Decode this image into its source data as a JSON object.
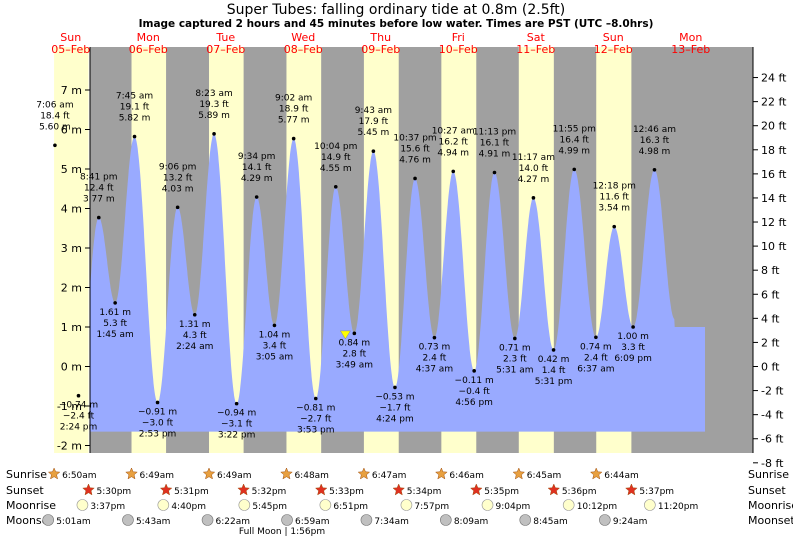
{
  "title": "Super Tubes: falling  ordinary tide at 0.8m (2.5ft)",
  "subtitle": "Image captured 2 hours and 45 minutes before low water. Times are PST (UTC –8.0hrs)",
  "colors": {
    "night": "#a0a0a0",
    "day": "#ffffcc",
    "water": "#99aaff",
    "day_label": "#ff0000",
    "sun_icon": "#e8a040",
    "sunset_icon": "#e03020",
    "moonrise_icon": "#ffffcc",
    "moonset_icon": "#c0c0c0",
    "current_marker": "#ffff00"
  },
  "chart_data": {
    "type": "area",
    "y_left": {
      "unit": "m",
      "min": -2,
      "max": 7,
      "ticks": [
        "-2 m",
        "-1 m",
        "0 m",
        "1 m",
        "2 m",
        "3 m",
        "4 m",
        "5 m",
        "6 m",
        "7 m"
      ]
    },
    "y_right": {
      "unit": "ft",
      "ticks": [
        "-8 ft",
        "-6 ft",
        "-4 ft",
        "-2 ft",
        "0 ft",
        "2 ft",
        "4 ft",
        "6 ft",
        "8 ft",
        "10 ft",
        "12 ft",
        "14 ft",
        "16 ft",
        "18 ft",
        "20 ft",
        "22 ft",
        "24 ft"
      ]
    },
    "days": [
      {
        "dow": "Sun",
        "date": "05–Feb"
      },
      {
        "dow": "Mon",
        "date": "06–Feb"
      },
      {
        "dow": "Tue",
        "date": "07–Feb"
      },
      {
        "dow": "Wed",
        "date": "08–Feb"
      },
      {
        "dow": "Thu",
        "date": "09–Feb"
      },
      {
        "dow": "Fri",
        "date": "10–Feb"
      },
      {
        "dow": "Sat",
        "date": "11–Feb"
      },
      {
        "dow": "Sun",
        "date": "12–Feb"
      },
      {
        "dow": "Mon",
        "date": "13–Feb"
      }
    ],
    "daylight": [
      {
        "sunrise": "6:50am",
        "sunset": "5:30pm"
      },
      {
        "sunrise": "6:49am",
        "sunset": "5:31pm"
      },
      {
        "sunrise": "6:49am",
        "sunset": "5:32pm"
      },
      {
        "sunrise": "6:48am",
        "sunset": "5:33pm"
      },
      {
        "sunrise": "6:47am",
        "sunset": "5:34pm"
      },
      {
        "sunrise": "6:46am",
        "sunset": "5:35pm"
      },
      {
        "sunrise": "6:45am",
        "sunset": "5:36pm"
      },
      {
        "sunrise": "6:44am",
        "sunset": "5:37pm"
      }
    ],
    "tides": [
      {
        "type": "high",
        "time": "7:06 am",
        "m": 5.6,
        "m_label": "5.60 m",
        "ft_label": "18.4 ft",
        "day": 0,
        "hour": 7.1
      },
      {
        "type": "low",
        "time": "2:24 pm",
        "m": -0.74,
        "m_label": "−0.74 m",
        "ft_label": "−2.4 ft",
        "day": 0,
        "hour": 14.4
      },
      {
        "type": "high",
        "time": "8:41 pm",
        "m": 3.77,
        "m_label": "3.77 m",
        "ft_label": "12.4 ft",
        "day": 0,
        "hour": 20.68
      },
      {
        "type": "low",
        "time": "1:45 am",
        "m": 1.61,
        "m_label": "1.61 m",
        "ft_label": "5.3 ft",
        "day": 1,
        "hour": 1.75
      },
      {
        "type": "high",
        "time": "7:45 am",
        "m": 5.82,
        "m_label": "5.82 m",
        "ft_label": "19.1 ft",
        "day": 1,
        "hour": 7.75
      },
      {
        "type": "low",
        "time": "2:53 pm",
        "m": -0.91,
        "m_label": "−0.91 m",
        "ft_label": "−3.0 ft",
        "day": 1,
        "hour": 14.88
      },
      {
        "type": "high",
        "time": "9:06 pm",
        "m": 4.03,
        "m_label": "4.03 m",
        "ft_label": "13.2 ft",
        "day": 1,
        "hour": 21.1
      },
      {
        "type": "low",
        "time": "2:24 am",
        "m": 1.31,
        "m_label": "1.31 m",
        "ft_label": "4.3 ft",
        "day": 2,
        "hour": 2.4
      },
      {
        "type": "high",
        "time": "8:23 am",
        "m": 5.89,
        "m_label": "5.89 m",
        "ft_label": "19.3 ft",
        "day": 2,
        "hour": 8.38
      },
      {
        "type": "low",
        "time": "3:22 pm",
        "m": -0.94,
        "m_label": "−0.94 m",
        "ft_label": "−3.1 ft",
        "day": 2,
        "hour": 15.37
      },
      {
        "type": "high",
        "time": "9:34 pm",
        "m": 4.29,
        "m_label": "4.29 m",
        "ft_label": "14.1 ft",
        "day": 2,
        "hour": 21.57
      },
      {
        "type": "low",
        "time": "3:05 am",
        "m": 1.04,
        "m_label": "1.04 m",
        "ft_label": "3.4 ft",
        "day": 3,
        "hour": 3.08
      },
      {
        "type": "high",
        "time": "9:02 am",
        "m": 5.77,
        "m_label": "5.77 m",
        "ft_label": "18.9 ft",
        "day": 3,
        "hour": 9.03
      },
      {
        "type": "low",
        "time": "3:53 pm",
        "m": -0.81,
        "m_label": "−0.81 m",
        "ft_label": "−2.7 ft",
        "day": 3,
        "hour": 15.88
      },
      {
        "type": "high",
        "time": "10:04 pm",
        "m": 4.55,
        "m_label": "4.55 m",
        "ft_label": "14.9 ft",
        "day": 3,
        "hour": 22.07
      },
      {
        "type": "low",
        "time": "3:49 am",
        "m": 0.84,
        "m_label": "0.84 m",
        "ft_label": "2.8 ft",
        "day": 4,
        "hour": 3.82
      },
      {
        "type": "high",
        "time": "9:43 am",
        "m": 5.45,
        "m_label": "5.45 m",
        "ft_label": "17.9 ft",
        "day": 4,
        "hour": 9.72
      },
      {
        "type": "low",
        "time": "4:24 pm",
        "m": -0.53,
        "m_label": "−0.53 m",
        "ft_label": "−1.7 ft",
        "day": 4,
        "hour": 16.4
      },
      {
        "type": "high",
        "time": "10:37 pm",
        "m": 4.76,
        "m_label": "4.76 m",
        "ft_label": "15.6 ft",
        "day": 4,
        "hour": 22.62
      },
      {
        "type": "low",
        "time": "4:37 am",
        "m": 0.73,
        "m_label": "0.73 m",
        "ft_label": "2.4 ft",
        "day": 5,
        "hour": 4.62
      },
      {
        "type": "high",
        "time": "10:27 am",
        "m": 4.94,
        "m_label": "4.94 m",
        "ft_label": "16.2 ft",
        "day": 5,
        "hour": 10.45
      },
      {
        "type": "low",
        "time": "4:56 pm",
        "m": -0.11,
        "m_label": "−0.11 m",
        "ft_label": "−0.4 ft",
        "day": 5,
        "hour": 16.93
      },
      {
        "type": "high",
        "time": "11:13 pm",
        "m": 4.91,
        "m_label": "4.91 m",
        "ft_label": "16.1 ft",
        "day": 5,
        "hour": 23.22
      },
      {
        "type": "low",
        "time": "5:31 am",
        "m": 0.71,
        "m_label": "0.71 m",
        "ft_label": "2.3 ft",
        "day": 6,
        "hour": 5.52
      },
      {
        "type": "high",
        "time": "11:17 am",
        "m": 4.27,
        "m_label": "4.27 m",
        "ft_label": "14.0 ft",
        "day": 6,
        "hour": 11.28
      },
      {
        "type": "low",
        "time": "5:31 pm",
        "m": 0.42,
        "m_label": "0.42 m",
        "ft_label": "1.4 ft",
        "day": 6,
        "hour": 17.52
      },
      {
        "type": "high",
        "time": "11:55 pm",
        "m": 4.99,
        "m_label": "4.99 m",
        "ft_label": "16.4 ft",
        "day": 6,
        "hour": 23.92
      },
      {
        "type": "low",
        "time": "6:37 am",
        "m": 0.74,
        "m_label": "0.74 m",
        "ft_label": "2.4 ft",
        "day": 7,
        "hour": 6.62
      },
      {
        "type": "high",
        "time": "12:18 pm",
        "m": 3.54,
        "m_label": "3.54 m",
        "ft_label": "11.6 ft",
        "day": 7,
        "hour": 12.3
      },
      {
        "type": "low",
        "time": "6:09 pm",
        "m": 1.0,
        "m_label": "1.00 m",
        "ft_label": "3.3 ft",
        "day": 7,
        "hour": 18.15
      },
      {
        "type": "high",
        "time": "12:46 am",
        "m": 4.98,
        "m_label": "4.98 m",
        "ft_label": "16.3 ft",
        "day": 8,
        "hour": 0.77
      }
    ],
    "current_level": {
      "m": 0.8,
      "day": 4,
      "hour": 1.05
    }
  },
  "rows": {
    "sunrise_label": "Sunrise",
    "sunset_label": "Sunset",
    "moonrise_label": "Moonrise",
    "moonset_label": "Moonset",
    "moonrise": [
      "3:37pm",
      "4:40pm",
      "5:45pm",
      "6:51pm",
      "7:57pm",
      "9:04pm",
      "10:12pm",
      "11:20pm"
    ],
    "moonset": [
      "5:01am",
      "5:43am",
      "6:22am",
      "6:59am",
      "7:34am",
      "8:09am",
      "8:45am",
      "9:24am"
    ]
  },
  "footer_note": "Full Moon | 1:56pm"
}
